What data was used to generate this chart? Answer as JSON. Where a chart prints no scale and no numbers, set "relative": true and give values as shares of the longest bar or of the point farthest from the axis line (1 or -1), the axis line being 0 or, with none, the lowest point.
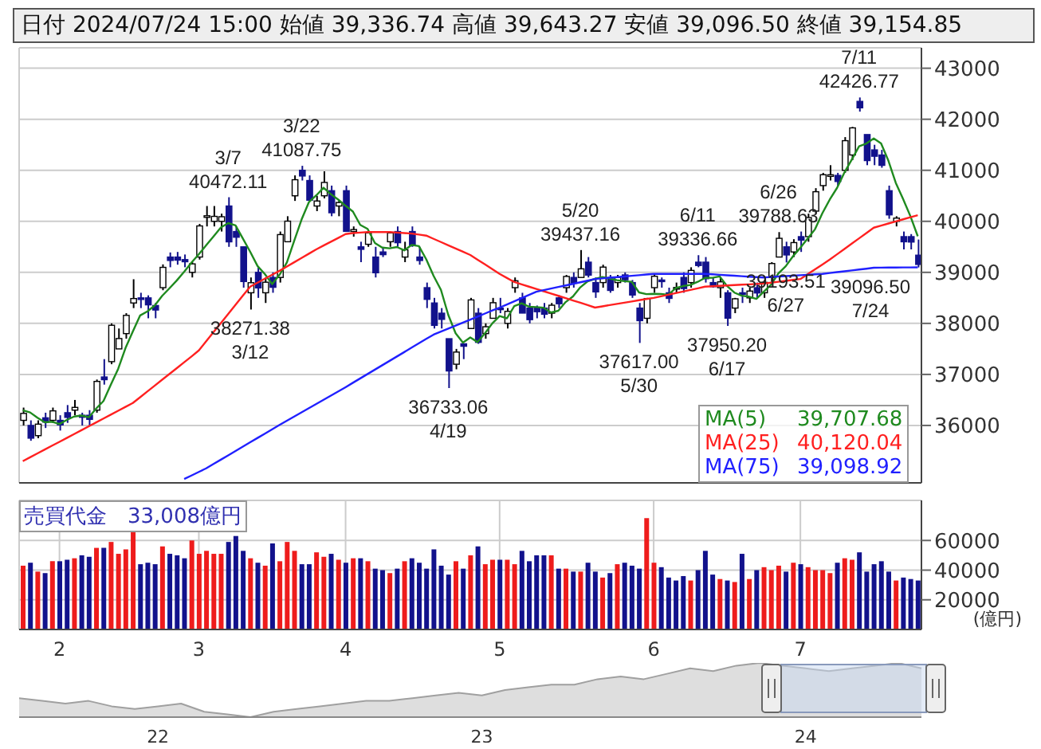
{
  "chart_data": [
    {
      "type": "candlestick",
      "title": "日付 2024/07/24 15:00 始値 39,336.74 高値 39,643.27 安値 39,096.50 終値 39,154.85",
      "categories": [
        null,
        null,
        null,
        null,
        null,
        "2",
        null,
        null,
        null,
        null,
        null,
        null,
        null,
        null,
        null,
        null,
        null,
        null,
        null,
        null,
        null,
        null,
        null,
        null,
        "3",
        null,
        null,
        null,
        null,
        null,
        null,
        null,
        null,
        null,
        null,
        null,
        null,
        null,
        null,
        null,
        null,
        null,
        null,
        null,
        "4",
        null,
        null,
        null,
        null,
        null,
        null,
        null,
        null,
        null,
        null,
        null,
        null,
        null,
        null,
        null,
        null,
        null,
        null,
        null,
        null,
        "5",
        null,
        null,
        null,
        null,
        null,
        null,
        null,
        null,
        null,
        null,
        null,
        null,
        null,
        null,
        null,
        null,
        null,
        null,
        null,
        null,
        "6",
        null,
        null,
        null,
        null,
        null,
        null,
        null,
        null,
        null,
        null,
        null,
        null,
        null,
        null,
        null,
        null,
        null,
        null,
        null,
        "7",
        null,
        null,
        null,
        null,
        null,
        null,
        null,
        null,
        null,
        null,
        null,
        null,
        null,
        null,
        null,
        null
      ],
      "series": [
        {
          "type": "candlestick",
          "colors": [
            "#ffffff",
            "#12128c",
            "#ffffff",
            "#12128c",
            "#ffffff",
            "#12128c",
            "#12128c",
            "#ffffff",
            "#12128c",
            "#12128c",
            "#ffffff",
            "#12128c",
            "#ffffff",
            "#ffffff",
            "#ffffff",
            "#ffffff",
            "#12128c",
            "#12128c",
            "#12128c",
            "#ffffff",
            "#12128c",
            "#12128c",
            "#12128c",
            "#ffffff",
            "#ffffff",
            "#ffffff",
            "#ffffff",
            "#ffffff",
            "#12128c",
            "#12128c",
            "#12128c",
            "#ffffff",
            "#12128c",
            "#ffffff",
            "#12128c",
            "#ffffff",
            "#ffffff",
            "#ffffff",
            "#12128c",
            "#12128c",
            "#ffffff",
            "#ffffff",
            "#12128c",
            "#ffffff",
            "#12128c",
            "#ffffff",
            "#12128c",
            "#ffffff",
            "#12128c",
            "#12128c",
            "#ffffff",
            "#12128c",
            "#ffffff",
            "#12128c",
            "#12128c",
            "#12128c",
            "#12128c",
            "#12128c",
            "#12128c",
            "#ffffff",
            "#12128c",
            "#ffffff",
            "#12128c",
            "#ffffff",
            "#ffffff",
            "#12128c",
            "#ffffff",
            "#ffffff",
            "#12128c",
            "#12128c",
            "#12128c",
            "#12128c",
            "#ffffff",
            "#12128c",
            "#ffffff",
            "#12128c",
            "#ffffff",
            "#12128c",
            "#12128c",
            "#ffffff",
            "#12128c",
            "#ffffff",
            "#12128c",
            "#12128c",
            "#12128c",
            "#ffffff",
            "#ffffff",
            "#12128c",
            "#12128c",
            "#12128c",
            "#12128c",
            "#ffffff",
            "#12128c",
            "#12128c",
            "#12128c",
            "#ffffff",
            "#12128c",
            "#ffffff",
            "#12128c",
            "#ffffff",
            "#12128c",
            "#ffffff",
            "#ffffff",
            "#ffffff",
            "#12128c",
            "#ffffff",
            "#12128c",
            "#ffffff",
            "#ffffff",
            "#ffffff",
            "#ffffff",
            "#12128c",
            "#ffffff",
            "#ffffff",
            "#12128c",
            "#12128c",
            "#12128c",
            "#12128c",
            "#12128c",
            "#ffffff",
            "#12128c",
            "#12128c",
            "#12128c"
          ],
          "ohlc": [
            [
              36100,
              36350,
              36000,
              36236
            ],
            [
              36000,
              36100,
              35700,
              35751
            ],
            [
              35800,
              36100,
              35750,
              36026
            ],
            [
              36150,
              36250,
              35950,
              36066
            ],
            [
              36100,
              36350,
              36050,
              36286
            ],
            [
              36100,
              36200,
              35900,
              36011
            ],
            [
              36250,
              36400,
              36050,
              36158
            ],
            [
              36300,
              36500,
              36200,
              36354
            ],
            [
              36200,
              36250,
              36000,
              36160
            ],
            [
              36200,
              36300,
              36000,
              36119
            ],
            [
              36300,
              36900,
              36250,
              36863
            ],
            [
              36950,
              37300,
              36800,
              36897
            ],
            [
              37250,
              38000,
              37200,
              37963
            ],
            [
              37500,
              37900,
              37500,
              37703
            ],
            [
              37800,
              38200,
              37700,
              38157
            ],
            [
              38400,
              38865,
              38300,
              38487
            ],
            [
              38500,
              38600,
              38300,
              38470
            ],
            [
              38500,
              38550,
              38100,
              38363
            ],
            [
              38350,
              38400,
              38100,
              38262
            ],
            [
              38700,
              39156,
              38650,
              39098
            ],
            [
              39300,
              39390,
              39100,
              39233
            ],
            [
              39300,
              39400,
              39150,
              39239
            ],
            [
              39250,
              39350,
              39100,
              39208
            ],
            [
              39000,
              39200,
              38900,
              39166
            ],
            [
              39300,
              39950,
              39250,
              39910
            ],
            [
              40100,
              40300,
              39900,
              40109
            ],
            [
              40000,
              40300,
              39900,
              40097
            ],
            [
              40000,
              40150,
              39800,
              40090
            ],
            [
              40300,
              40472.11,
              39500,
              39598
            ],
            [
              39800,
              39900,
              39500,
              39688
            ],
            [
              39500,
              39500,
              38700,
              38820
            ],
            [
              38600,
              38900,
              38271.38,
              38797
            ],
            [
              39000,
              39100,
              38500,
              38695
            ],
            [
              38600,
              38900,
              38400,
              38807
            ],
            [
              38900,
              39000,
              38600,
              38707
            ],
            [
              38900,
              39800,
              38800,
              39740
            ],
            [
              39600,
              40100,
              39600,
              40003
            ],
            [
              40500,
              40900,
              40400,
              40815
            ],
            [
              41000,
              41087.75,
              40800,
              40888
            ],
            [
              40800,
              40900,
              40400,
              40414
            ],
            [
              40300,
              40500,
              40200,
              40398
            ],
            [
              40500,
              40980,
              40450,
              40762
            ],
            [
              40600,
              40700,
              40100,
              40168
            ],
            [
              40300,
              40400,
              40100,
              40369
            ],
            [
              40600,
              40700,
              39800,
              39803
            ],
            [
              39800,
              39900,
              39700,
              39838
            ],
            [
              39500,
              39600,
              39200,
              39451
            ],
            [
              39550,
              39800,
              39500,
              39773
            ],
            [
              39300,
              39500,
              38900,
              38992
            ],
            [
              39400,
              39500,
              39300,
              39347
            ],
            [
              39600,
              39800,
              39500,
              39773
            ],
            [
              39800,
              39900,
              39500,
              39581
            ],
            [
              39300,
              39600,
              39200,
              39442
            ],
            [
              39800,
              39900,
              39500,
              39523
            ],
            [
              39300,
              39500,
              39150,
              39232
            ],
            [
              38700,
              38800,
              38300,
              38471
            ],
            [
              38400,
              38500,
              37900,
              37961
            ],
            [
              38200,
              38300,
              37900,
              38079
            ],
            [
              37700,
              37700,
              36733.06,
              37068
            ],
            [
              37200,
              37500,
              37100,
              37438
            ],
            [
              37600,
              37600,
              37300,
              37552
            ],
            [
              37900,
              38500,
              37900,
              38460
            ],
            [
              38200,
              38300,
              37600,
              37628
            ],
            [
              37800,
              38000,
              37700,
              37934
            ],
            [
              38100,
              38500,
              38100,
              38405
            ],
            [
              38300,
              38500,
              38200,
              38274
            ],
            [
              38000,
              38300,
              37900,
              38236
            ],
            [
              38700,
              38900,
              38600,
              38835
            ],
            [
              38500,
              38600,
              38200,
              38202
            ],
            [
              38300,
              38400,
              38000,
              38073
            ],
            [
              38300,
              38350,
              38100,
              38229
            ],
            [
              38300,
              38400,
              38100,
              38179
            ],
            [
              38200,
              38400,
              38100,
              38356
            ],
            [
              38500,
              38550,
              38300,
              38385
            ],
            [
              38700,
              38950,
              38600,
              38920
            ],
            [
              38900,
              39000,
              38700,
              38787
            ],
            [
              38900,
              39437.16,
              38900,
              39069
            ],
            [
              39200,
              39300,
              38900,
              38946
            ],
            [
              38800,
              38900,
              38500,
              38617
            ],
            [
              38800,
              39150,
              38700,
              39103
            ],
            [
              38900,
              38950,
              38600,
              38646
            ],
            [
              38800,
              38950,
              38700,
              38900
            ],
            [
              38950,
              39000,
              38800,
              38855
            ],
            [
              38800,
              38850,
              38500,
              38556
            ],
            [
              38300,
              38400,
              37617,
              38054
            ],
            [
              38100,
              38500,
              38000,
              38487
            ],
            [
              38700,
              38950,
              38600,
              38923
            ],
            [
              38850,
              38900,
              38700,
              38837
            ],
            [
              38600,
              38700,
              38400,
              38490
            ],
            [
              38700,
              38800,
              38600,
              38703
            ],
            [
              38900,
              39000,
              38600,
              38683
            ],
            [
              38800,
              39100,
              38700,
              39038
            ],
            [
              39200,
              39336.66,
              39100,
              39134
            ],
            [
              39200,
              39300,
              38800,
              38876
            ],
            [
              38800,
              38900,
              38700,
              38720
            ],
            [
              38700,
              38900,
              38500,
              38814
            ],
            [
              38600,
              38650,
              37950.2,
              38102
            ],
            [
              38300,
              38500,
              38200,
              38482
            ],
            [
              38600,
              38700,
              38400,
              38570
            ],
            [
              38500,
              38700,
              38400,
              38633
            ],
            [
              38700,
              38800,
              38500,
              38596
            ],
            [
              38600,
              38850,
              38500,
              38804
            ],
            [
              38900,
              39200,
              38800,
              39173
            ],
            [
              39300,
              39788.63,
              39300,
              39667
            ],
            [
              39500,
              39600,
              39193.51,
              39341
            ],
            [
              39400,
              39650,
              39300,
              39583
            ],
            [
              39700,
              39800,
              39400,
              39631
            ],
            [
              39700,
              40150,
              39600,
              40074
            ],
            [
              40200,
              40650,
              40150,
              40580
            ],
            [
              40700,
              40950,
              40600,
              40913
            ],
            [
              40900,
              41100,
              40800,
              40912
            ],
            [
              40900,
              40950,
              40700,
              40780
            ],
            [
              41000,
              41650,
              40950,
              41580
            ],
            [
              41300,
              41850,
              41200,
              41831
            ],
            [
              42350,
              42426.77,
              42150,
              42224
            ],
            [
              41700,
              41700,
              41100,
              41190
            ],
            [
              41400,
              41500,
              41100,
              41275
            ],
            [
              41300,
              41400,
              41050,
              41097
            ],
            [
              40600,
              40700,
              40050,
              40126
            ],
            [
              40000,
              40100,
              39900,
              40063
            ],
            [
              39700,
              39800,
              39450,
              39599
            ],
            [
              39700,
              39750,
              39450,
              39594
            ],
            [
              39336.74,
              39643.27,
              39096.5,
              39154.85
            ]
          ]
        },
        {
          "type": "line",
          "name": "MA(5)",
          "color": "#1f8a1f",
          "values": [
            36298,
            36255,
            36151,
            36061,
            36073,
            36028,
            36109,
            36175,
            36194,
            36160,
            36331,
            36479,
            36800,
            37109,
            37517,
            37841,
            38156,
            38236,
            38352,
            38540,
            38689,
            38843,
            39012,
            39193,
            39355,
            39530,
            39702,
            39878,
            39965,
            39920,
            39663,
            39403,
            39124,
            38965,
            38769,
            38953,
            39194,
            39618,
            40035,
            40376,
            40508,
            40659,
            40530,
            40426,
            40304,
            40192,
            39930,
            39851,
            39575,
            39484,
            39471,
            39497,
            39431,
            39537,
            39514,
            39254,
            38930,
            38657,
            38166,
            37807,
            37624,
            37723,
            37633,
            37806,
            38000,
            38144,
            38099,
            38341,
            38394,
            38328,
            38319,
            38308,
            38212,
            38248,
            38418,
            38529,
            38707,
            38825,
            38872,
            38908,
            38880,
            38846,
            38828,
            38816,
            38606,
            38574,
            38579,
            38575,
            38562,
            38692,
            38731,
            38754,
            38814,
            38891,
            38894,
            38920,
            38733,
            38603,
            38542,
            38524,
            38481,
            38621,
            38759,
            38979,
            39120,
            39318,
            39483,
            39663,
            39846,
            40160,
            40426,
            40656,
            40957,
            41207,
            41469,
            41525,
            41624,
            41527,
            41186,
            40754,
            40436,
            40100,
            39707.68
          ]
        },
        {
          "type": "line",
          "name": "MA(25)",
          "color": "#ff2020",
          "values": [
            35300,
            35376,
            35452,
            35528,
            35604,
            35680,
            35756,
            35832,
            35908,
            35984,
            36060,
            36136,
            36212,
            36288,
            36364,
            36440,
            36554,
            36668,
            36782,
            36896,
            37010,
            37124,
            37238,
            37352,
            37470,
            37649,
            37828,
            38007,
            38186,
            38365,
            38544,
            38720,
            38798,
            38876,
            38954,
            39030,
            39114,
            39198,
            39282,
            39366,
            39450,
            39525,
            39600,
            39675,
            39750,
            39770,
            39780,
            39790,
            39790,
            39790,
            39790,
            39780,
            39770,
            39760,
            39740,
            39720,
            39657,
            39594,
            39531,
            39468,
            39405,
            39340,
            39248,
            39156,
            39064,
            38970,
            38890,
            38810,
            38765,
            38720,
            38675,
            38630,
            38585,
            38540,
            38495,
            38450,
            38405,
            38360,
            38310,
            38334,
            38358,
            38382,
            38406,
            38430,
            38454,
            38478,
            38500,
            38531,
            38562,
            38593,
            38624,
            38655,
            38686,
            38720,
            38728,
            38735,
            38743,
            38750,
            38758,
            38765,
            38773,
            38780,
            38798,
            38816,
            38834,
            38852,
            38870,
            38965,
            39060,
            39155,
            39250,
            39354,
            39458,
            39562,
            39666,
            39770,
            39875,
            39916,
            39957,
            39998,
            40039,
            40080,
            40120.04
          ]
        },
        {
          "type": "line",
          "name": "MA(75)",
          "color": "#2020ff",
          "values": [
            null,
            null,
            null,
            null,
            null,
            null,
            null,
            null,
            null,
            null,
            null,
            null,
            null,
            null,
            null,
            null,
            null,
            null,
            null,
            null,
            null,
            null,
            34950,
            35020,
            35090,
            35160,
            35245,
            35330,
            35415,
            35500,
            35585,
            35670,
            35755,
            35840,
            35925,
            36010,
            36092,
            36174,
            36256,
            36338,
            36420,
            36502,
            36584,
            36666,
            36750,
            36836,
            36922,
            37008,
            37094,
            37180,
            37266,
            37352,
            37438,
            37524,
            37610,
            37696,
            37780,
            37839,
            37898,
            37957,
            38016,
            38075,
            38134,
            38193,
            38252,
            38310,
            38372,
            38434,
            38496,
            38558,
            38620,
            38651,
            38682,
            38713,
            38744,
            38775,
            38806,
            38837,
            38870,
            38882,
            38895,
            38907,
            38920,
            38932,
            38945,
            38957,
            38970,
            38970,
            38970,
            38970,
            38970,
            38970,
            38970,
            38970,
            38961,
            38952,
            38943,
            38934,
            38925,
            38916,
            38908,
            38900,
            38909,
            38918,
            38926,
            38935,
            38944,
            38952,
            38961,
            38970,
            38987,
            39004,
            39021,
            39038,
            39055,
            39072,
            39090,
            39092,
            39094,
            39095,
            39096,
            39097,
            39098.92
          ]
        }
      ],
      "ylim": [
        34875,
        43400
      ],
      "yticks": [
        36000,
        37000,
        38000,
        39000,
        40000,
        41000,
        42000,
        43000
      ],
      "grid": true,
      "legend": "bottom right",
      "tick_labels": "y",
      "annotations": [
        {
          "text": "3/7\n40472.11",
          "y": 40472.11
        },
        {
          "text": "3/22\n41087.75",
          "y": 41087.75
        },
        {
          "text": "38271.38\n3/12",
          "y": 38271.38
        },
        {
          "text": "36733.06\n4/19",
          "y": 36733.06
        },
        {
          "text": "5/20\n39437.16",
          "y": 39437.16
        },
        {
          "text": "6/11\n39336.66",
          "y": 39336.66
        },
        {
          "text": "37617.00\n5/30",
          "y": 37617
        },
        {
          "text": "37950.20\n6/17",
          "y": 37950.2
        },
        {
          "text": "6/26\n39788.63",
          "y": 39788.63
        },
        {
          "text": "39193.51\n6/27",
          "y": 39193.51
        },
        {
          "text": "7/11\n42426.77",
          "y": 42426.77
        },
        {
          "text": "39096.50\n7/24",
          "y": 39096.5
        },
        "39,707.68",
        "40,120.04",
        "39,098.92"
      ]
    },
    {
      "type": "bar",
      "title": "売買代金　33,008億円",
      "ylabel": "(億円)",
      "categories": [
        null,
        null,
        null,
        null,
        null,
        "2",
        null,
        null,
        null,
        null,
        null,
        null,
        null,
        null,
        null,
        null,
        null,
        null,
        null,
        null,
        null,
        null,
        null,
        null,
        "3",
        null,
        null,
        null,
        null,
        null,
        null,
        null,
        null,
        null,
        null,
        null,
        null,
        null,
        null,
        null,
        null,
        null,
        null,
        null,
        "4",
        null,
        null,
        null,
        null,
        null,
        null,
        null,
        null,
        null,
        null,
        null,
        null,
        null,
        null,
        null,
        null,
        null,
        null,
        null,
        null,
        "5",
        null,
        null,
        null,
        null,
        null,
        null,
        null,
        null,
        null,
        null,
        null,
        null,
        null,
        null,
        null,
        null,
        null,
        null,
        null,
        null,
        "6",
        null,
        null,
        null,
        null,
        null,
        null,
        null,
        null,
        null,
        null,
        null,
        null,
        null,
        null,
        null,
        null,
        null,
        null,
        null,
        "7",
        null,
        null,
        null,
        null,
        null,
        null,
        null,
        null,
        null,
        null,
        null,
        null,
        null,
        null,
        null,
        null
      ],
      "values": [
        43000,
        45000,
        39000,
        38000,
        46000,
        46000,
        47000,
        48000,
        50000,
        49000,
        55000,
        55000,
        59000,
        51000,
        54000,
        66000,
        44000,
        45000,
        44000,
        56000,
        51000,
        50000,
        48000,
        60000,
        51000,
        53000,
        51000,
        51000,
        59000,
        63000,
        53000,
        48000,
        45000,
        43000,
        58000,
        46000,
        59000,
        53000,
        44000,
        44000,
        52000,
        49000,
        51000,
        47000,
        45000,
        48000,
        48000,
        46000,
        41000,
        40000,
        38000,
        41000,
        46000,
        48000,
        45000,
        41000,
        54000,
        43000,
        37000,
        46000,
        41000,
        50000,
        56000,
        44000,
        47000,
        47000,
        47000,
        44000,
        53000,
        46000,
        50000,
        50000,
        50000,
        41000,
        41000,
        39000,
        39000,
        45000,
        39000,
        35000,
        38000,
        44000,
        45000,
        43000,
        41000,
        75000,
        45000,
        42000,
        35000,
        33000,
        36000,
        33000,
        40000,
        53000,
        37000,
        34000,
        33000,
        32000,
        51000,
        34000,
        40000,
        42000,
        40000,
        43000,
        39000,
        45000,
        44000,
        42000,
        40000,
        40000,
        38000,
        45000,
        48000,
        47000,
        52000,
        39000,
        44000,
        46000,
        39000,
        33000,
        35000,
        34000,
        33008
      ],
      "colors": [
        "#ee1c1c",
        "#12128c",
        "#ee1c1c",
        "#12128c",
        "#ee1c1c",
        "#12128c",
        "#12128c",
        "#ee1c1c",
        "#12128c",
        "#12128c",
        "#ee1c1c",
        "#12128c",
        "#ee1c1c",
        "#ee1c1c",
        "#ee1c1c",
        "#ee1c1c",
        "#12128c",
        "#12128c",
        "#12128c",
        "#ee1c1c",
        "#12128c",
        "#12128c",
        "#12128c",
        "#ee1c1c",
        "#ee1c1c",
        "#ee1c1c",
        "#ee1c1c",
        "#ee1c1c",
        "#12128c",
        "#12128c",
        "#12128c",
        "#ee1c1c",
        "#12128c",
        "#ee1c1c",
        "#12128c",
        "#ee1c1c",
        "#ee1c1c",
        "#ee1c1c",
        "#12128c",
        "#12128c",
        "#ee1c1c",
        "#ee1c1c",
        "#12128c",
        "#ee1c1c",
        "#12128c",
        "#ee1c1c",
        "#12128c",
        "#ee1c1c",
        "#12128c",
        "#12128c",
        "#ee1c1c",
        "#12128c",
        "#ee1c1c",
        "#12128c",
        "#12128c",
        "#12128c",
        "#12128c",
        "#12128c",
        "#12128c",
        "#ee1c1c",
        "#12128c",
        "#ee1c1c",
        "#12128c",
        "#ee1c1c",
        "#ee1c1c",
        "#12128c",
        "#ee1c1c",
        "#ee1c1c",
        "#12128c",
        "#12128c",
        "#12128c",
        "#12128c",
        "#ee1c1c",
        "#12128c",
        "#ee1c1c",
        "#12128c",
        "#ee1c1c",
        "#12128c",
        "#12128c",
        "#ee1c1c",
        "#12128c",
        "#ee1c1c",
        "#12128c",
        "#12128c",
        "#12128c",
        "#ee1c1c",
        "#ee1c1c",
        "#12128c",
        "#12128c",
        "#12128c",
        "#12128c",
        "#ee1c1c",
        "#12128c",
        "#12128c",
        "#12128c",
        "#ee1c1c",
        "#12128c",
        "#ee1c1c",
        "#12128c",
        "#ee1c1c",
        "#12128c",
        "#ee1c1c",
        "#ee1c1c",
        "#ee1c1c",
        "#12128c",
        "#ee1c1c",
        "#12128c",
        "#ee1c1c",
        "#ee1c1c",
        "#ee1c1c",
        "#ee1c1c",
        "#12128c",
        "#ee1c1c",
        "#ee1c1c",
        "#12128c",
        "#12128c",
        "#12128c",
        "#12128c",
        "#12128c",
        "#ee1c1c",
        "#12128c",
        "#12128c",
        "#12128c"
      ],
      "ylim": [
        0,
        87000
      ],
      "yticks": [
        20000,
        40000,
        60000
      ],
      "grid": true
    },
    {
      "type": "area",
      "relative": true,
      "tick_labels": "x",
      "categories": [
        null,
        null,
        null,
        null,
        null,
        null,
        "22",
        null,
        null,
        null,
        null,
        null,
        null,
        null,
        null,
        null,
        null,
        null,
        null,
        null,
        "23",
        null,
        null,
        null,
        null,
        null,
        null,
        null,
        null,
        null,
        null,
        null,
        null,
        null,
        "24",
        null,
        null,
        null,
        null,
        null
      ],
      "series": [
        {
          "color": "#a0a0a0",
          "values": [
            0.35,
            0.3,
            0.25,
            0.3,
            0.2,
            0.15,
            0.2,
            0.25,
            0.1,
            0.05,
            0,
            0.1,
            0.15,
            0.2,
            0.25,
            0.3,
            0.3,
            0.35,
            0.4,
            0.45,
            0.4,
            0.5,
            0.55,
            0.6,
            0.6,
            0.7,
            0.75,
            0.7,
            0.8,
            0.9,
            0.85,
            0.95,
            1,
            0.95,
            0.9,
            0.85,
            0.9,
            0.95,
            1,
            0.9
          ]
        }
      ]
    }
  ]
}
